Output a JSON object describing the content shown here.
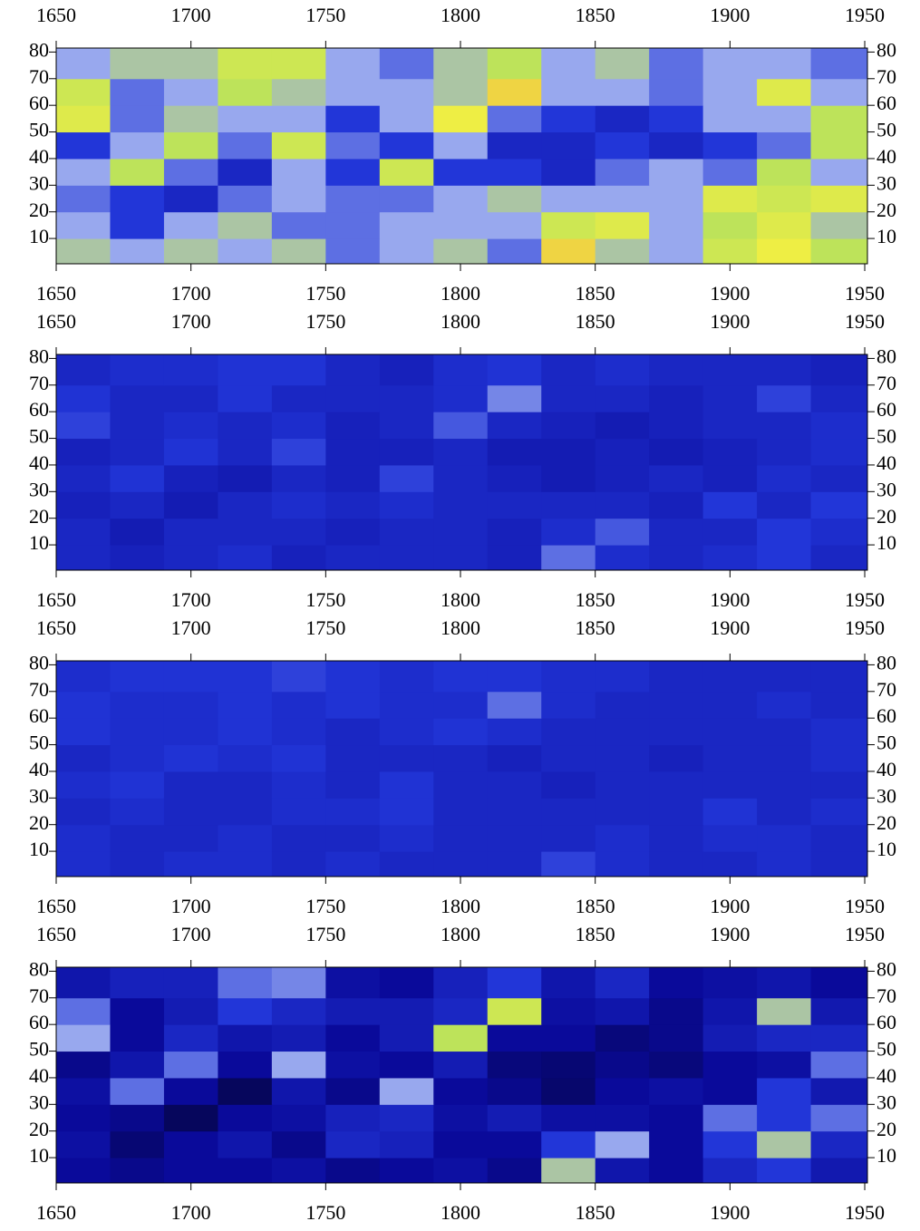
{
  "chart_data": [
    {
      "type": "heatmap",
      "x": [
        1660,
        1680,
        1700,
        1720,
        1740,
        1760,
        1780,
        1800,
        1820,
        1840,
        1860,
        1880,
        1900,
        1920,
        1940
      ],
      "y": [
        5,
        15,
        25,
        35,
        45,
        55,
        65,
        75
      ],
      "z": [
        [
          0.5,
          0.45,
          0.5,
          0.45,
          0.5,
          0.4,
          0.45,
          0.5,
          0.4,
          0.75,
          0.5,
          0.45,
          0.6,
          0.7,
          0.55
        ],
        [
          0.45,
          0.35,
          0.45,
          0.5,
          0.4,
          0.4,
          0.45,
          0.45,
          0.45,
          0.6,
          0.65,
          0.45,
          0.55,
          0.65,
          0.5
        ],
        [
          0.4,
          0.35,
          0.3,
          0.4,
          0.45,
          0.4,
          0.4,
          0.45,
          0.5,
          0.45,
          0.45,
          0.45,
          0.65,
          0.6,
          0.65
        ],
        [
          0.45,
          0.55,
          0.4,
          0.3,
          0.45,
          0.35,
          0.6,
          0.35,
          0.35,
          0.3,
          0.4,
          0.45,
          0.4,
          0.55,
          0.45
        ],
        [
          0.35,
          0.45,
          0.55,
          0.4,
          0.6,
          0.4,
          0.35,
          0.45,
          0.3,
          0.3,
          0.35,
          0.3,
          0.35,
          0.4,
          0.55
        ],
        [
          0.65,
          0.4,
          0.5,
          0.45,
          0.45,
          0.35,
          0.45,
          0.7,
          0.4,
          0.35,
          0.3,
          0.35,
          0.45,
          0.45,
          0.55
        ],
        [
          0.6,
          0.4,
          0.45,
          0.55,
          0.5,
          0.45,
          0.45,
          0.5,
          0.75,
          0.45,
          0.45,
          0.4,
          0.45,
          0.65,
          0.45
        ],
        [
          0.45,
          0.5,
          0.5,
          0.6,
          0.6,
          0.45,
          0.4,
          0.5,
          0.55,
          0.45,
          0.5,
          0.4,
          0.45,
          0.45,
          0.4
        ]
      ],
      "xlim": [
        1650,
        1951
      ],
      "ylim": [
        0.5,
        81.5
      ],
      "xticks": [
        1650,
        1700,
        1750,
        1800,
        1850,
        1900,
        1950
      ],
      "yticks": [
        10,
        20,
        30,
        40,
        50,
        60,
        70,
        80
      ],
      "colorscale": [
        [
          0,
          "#000000"
        ],
        [
          0.2,
          "#0a0a9a"
        ],
        [
          0.35,
          "#2236d8"
        ],
        [
          0.45,
          "#98a8ee"
        ],
        [
          0.55,
          "#bde35a"
        ],
        [
          0.7,
          "#eeee44"
        ],
        [
          0.85,
          "#f0a040"
        ],
        [
          1,
          "#e04040"
        ]
      ]
    },
    {
      "type": "heatmap",
      "x": [
        1660,
        1680,
        1700,
        1720,
        1740,
        1760,
        1780,
        1800,
        1820,
        1840,
        1860,
        1880,
        1900,
        1920,
        1940
      ],
      "y": [
        5,
        15,
        25,
        35,
        45,
        55,
        65,
        75
      ],
      "z": [
        [
          0.3,
          0.28,
          0.3,
          0.32,
          0.28,
          0.3,
          0.3,
          0.3,
          0.28,
          0.4,
          0.32,
          0.3,
          0.32,
          0.35,
          0.3
        ],
        [
          0.3,
          0.26,
          0.3,
          0.3,
          0.3,
          0.28,
          0.3,
          0.3,
          0.28,
          0.32,
          0.38,
          0.3,
          0.3,
          0.35,
          0.32
        ],
        [
          0.28,
          0.3,
          0.26,
          0.3,
          0.32,
          0.3,
          0.32,
          0.3,
          0.3,
          0.3,
          0.3,
          0.28,
          0.35,
          0.3,
          0.35
        ],
        [
          0.3,
          0.34,
          0.28,
          0.26,
          0.3,
          0.28,
          0.36,
          0.3,
          0.28,
          0.26,
          0.28,
          0.3,
          0.28,
          0.32,
          0.3
        ],
        [
          0.28,
          0.3,
          0.34,
          0.3,
          0.36,
          0.28,
          0.28,
          0.3,
          0.26,
          0.26,
          0.28,
          0.26,
          0.28,
          0.3,
          0.32
        ],
        [
          0.36,
          0.3,
          0.32,
          0.3,
          0.32,
          0.28,
          0.3,
          0.38,
          0.3,
          0.28,
          0.26,
          0.28,
          0.3,
          0.3,
          0.32
        ],
        [
          0.34,
          0.3,
          0.3,
          0.34,
          0.3,
          0.3,
          0.3,
          0.32,
          0.42,
          0.3,
          0.3,
          0.28,
          0.3,
          0.36,
          0.3
        ],
        [
          0.3,
          0.32,
          0.32,
          0.34,
          0.34,
          0.3,
          0.28,
          0.32,
          0.34,
          0.3,
          0.32,
          0.3,
          0.3,
          0.3,
          0.28
        ]
      ],
      "xlim": [
        1650,
        1951
      ],
      "ylim": [
        0.5,
        81.5
      ],
      "xticks": [
        1650,
        1700,
        1750,
        1800,
        1850,
        1900,
        1950
      ],
      "yticks": [
        10,
        20,
        30,
        40,
        50,
        60,
        70,
        80
      ],
      "colorscale": [
        [
          0,
          "#000000"
        ],
        [
          0.2,
          "#0a0a9a"
        ],
        [
          0.35,
          "#2236d8"
        ],
        [
          0.45,
          "#98a8ee"
        ],
        [
          0.55,
          "#bde35a"
        ],
        [
          0.7,
          "#eeee44"
        ],
        [
          0.85,
          "#f0a040"
        ],
        [
          1,
          "#e04040"
        ]
      ]
    },
    {
      "type": "heatmap",
      "x": [
        1660,
        1680,
        1700,
        1720,
        1740,
        1760,
        1780,
        1800,
        1820,
        1840,
        1860,
        1880,
        1900,
        1920,
        1940
      ],
      "y": [
        5,
        15,
        25,
        35,
        45,
        55,
        65,
        75
      ],
      "z": [
        [
          0.32,
          0.3,
          0.32,
          0.32,
          0.3,
          0.32,
          0.3,
          0.3,
          0.3,
          0.36,
          0.32,
          0.3,
          0.3,
          0.32,
          0.3
        ],
        [
          0.32,
          0.3,
          0.3,
          0.32,
          0.3,
          0.3,
          0.32,
          0.3,
          0.3,
          0.3,
          0.32,
          0.3,
          0.32,
          0.32,
          0.3
        ],
        [
          0.3,
          0.32,
          0.3,
          0.3,
          0.32,
          0.32,
          0.34,
          0.3,
          0.3,
          0.3,
          0.3,
          0.3,
          0.34,
          0.3,
          0.32
        ],
        [
          0.32,
          0.34,
          0.3,
          0.3,
          0.32,
          0.3,
          0.34,
          0.3,
          0.3,
          0.28,
          0.3,
          0.3,
          0.3,
          0.3,
          0.3
        ],
        [
          0.3,
          0.32,
          0.34,
          0.32,
          0.34,
          0.3,
          0.3,
          0.3,
          0.28,
          0.3,
          0.3,
          0.28,
          0.3,
          0.3,
          0.32
        ],
        [
          0.34,
          0.32,
          0.32,
          0.34,
          0.32,
          0.3,
          0.32,
          0.34,
          0.32,
          0.3,
          0.3,
          0.3,
          0.3,
          0.3,
          0.32
        ],
        [
          0.34,
          0.32,
          0.32,
          0.34,
          0.32,
          0.34,
          0.32,
          0.32,
          0.4,
          0.32,
          0.3,
          0.3,
          0.3,
          0.32,
          0.3
        ],
        [
          0.32,
          0.34,
          0.34,
          0.34,
          0.36,
          0.34,
          0.32,
          0.34,
          0.34,
          0.32,
          0.32,
          0.3,
          0.3,
          0.3,
          0.3
        ]
      ],
      "xlim": [
        1650,
        1951
      ],
      "ylim": [
        0.5,
        81.5
      ],
      "xticks": [
        1650,
        1700,
        1750,
        1800,
        1850,
        1900,
        1950
      ],
      "yticks": [
        10,
        20,
        30,
        40,
        50,
        60,
        70,
        80
      ],
      "colorscale": [
        [
          0,
          "#000000"
        ],
        [
          0.2,
          "#0a0a9a"
        ],
        [
          0.35,
          "#2236d8"
        ],
        [
          0.45,
          "#98a8ee"
        ],
        [
          0.55,
          "#bde35a"
        ],
        [
          0.7,
          "#eeee44"
        ],
        [
          0.85,
          "#f0a040"
        ],
        [
          1,
          "#e04040"
        ]
      ]
    },
    {
      "type": "heatmap",
      "x": [
        1660,
        1680,
        1700,
        1720,
        1740,
        1760,
        1780,
        1800,
        1820,
        1840,
        1860,
        1880,
        1900,
        1920,
        1940
      ],
      "y": [
        5,
        15,
        25,
        35,
        45,
        55,
        65,
        75
      ],
      "z": [
        [
          0.2,
          0.18,
          0.2,
          0.2,
          0.22,
          0.18,
          0.2,
          0.22,
          0.18,
          0.5,
          0.24,
          0.2,
          0.3,
          0.35,
          0.25
        ],
        [
          0.22,
          0.15,
          0.2,
          0.24,
          0.18,
          0.3,
          0.28,
          0.2,
          0.2,
          0.35,
          0.45,
          0.2,
          0.35,
          0.5,
          0.3
        ],
        [
          0.2,
          0.18,
          0.12,
          0.2,
          0.22,
          0.28,
          0.3,
          0.22,
          0.26,
          0.22,
          0.22,
          0.2,
          0.4,
          0.35,
          0.4
        ],
        [
          0.22,
          0.4,
          0.2,
          0.12,
          0.24,
          0.18,
          0.45,
          0.2,
          0.18,
          0.14,
          0.2,
          0.22,
          0.2,
          0.35,
          0.25
        ],
        [
          0.18,
          0.24,
          0.4,
          0.2,
          0.45,
          0.22,
          0.2,
          0.26,
          0.16,
          0.15,
          0.18,
          0.16,
          0.2,
          0.22,
          0.4
        ],
        [
          0.45,
          0.2,
          0.3,
          0.24,
          0.26,
          0.2,
          0.26,
          0.55,
          0.2,
          0.2,
          0.16,
          0.18,
          0.26,
          0.3,
          0.3
        ],
        [
          0.4,
          0.2,
          0.26,
          0.35,
          0.3,
          0.26,
          0.26,
          0.3,
          0.6,
          0.22,
          0.24,
          0.18,
          0.24,
          0.5,
          0.25
        ],
        [
          0.24,
          0.28,
          0.28,
          0.4,
          0.42,
          0.22,
          0.2,
          0.28,
          0.35,
          0.24,
          0.3,
          0.2,
          0.22,
          0.24,
          0.2
        ]
      ],
      "xlim": [
        1650,
        1951
      ],
      "ylim": [
        0.5,
        81.5
      ],
      "xticks": [
        1650,
        1700,
        1750,
        1800,
        1850,
        1900,
        1950
      ],
      "yticks": [
        10,
        20,
        30,
        40,
        50,
        60,
        70,
        80
      ],
      "colorscale": [
        [
          0,
          "#000000"
        ],
        [
          0.2,
          "#0a0a9a"
        ],
        [
          0.35,
          "#2236d8"
        ],
        [
          0.45,
          "#98a8ee"
        ],
        [
          0.55,
          "#bde35a"
        ],
        [
          0.7,
          "#eeee44"
        ],
        [
          0.85,
          "#f0a040"
        ],
        [
          1,
          "#e04040"
        ]
      ]
    }
  ]
}
